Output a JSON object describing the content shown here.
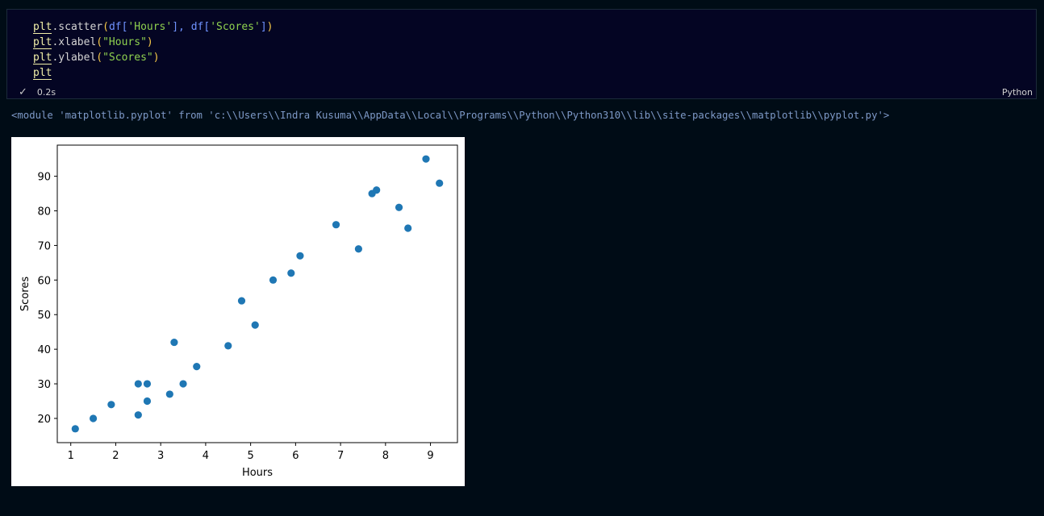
{
  "cell": {
    "code_lines": [
      [
        {
          "text": "plt",
          "cls": "v"
        },
        {
          "text": ".scatter",
          "cls": "w"
        },
        {
          "text": "(",
          "cls": "p"
        },
        {
          "text": "df",
          "cls": "k"
        },
        {
          "text": "[",
          "cls": "k"
        },
        {
          "text": "'Hours'",
          "cls": "s"
        },
        {
          "text": "], ",
          "cls": "k"
        },
        {
          "text": "df",
          "cls": "k"
        },
        {
          "text": "[",
          "cls": "k"
        },
        {
          "text": "'Scores'",
          "cls": "s"
        },
        {
          "text": "]",
          "cls": "k"
        },
        {
          "text": ")",
          "cls": "p"
        }
      ],
      [
        {
          "text": "plt",
          "cls": "v"
        },
        {
          "text": ".xlabel",
          "cls": "w"
        },
        {
          "text": "(",
          "cls": "p"
        },
        {
          "text": "\"Hours\"",
          "cls": "s"
        },
        {
          "text": ")",
          "cls": "p"
        }
      ],
      [
        {
          "text": "plt",
          "cls": "v"
        },
        {
          "text": ".ylabel",
          "cls": "w"
        },
        {
          "text": "(",
          "cls": "p"
        },
        {
          "text": "\"Scores\"",
          "cls": "s"
        },
        {
          "text": ")",
          "cls": "p"
        }
      ],
      [
        {
          "text": "plt",
          "cls": "v"
        }
      ]
    ],
    "status_icon": "check-icon",
    "exec_time": "0.2s",
    "language": "Python"
  },
  "output": {
    "text": "<module 'matplotlib.pyplot' from 'c:\\\\Users\\\\Indra Kusuma\\\\AppData\\\\Local\\\\Programs\\\\Python\\\\Python310\\\\lib\\\\site-packages\\\\matplotlib\\\\pyplot.py'>"
  },
  "chart_data": {
    "type": "scatter",
    "xlabel": "Hours",
    "ylabel": "Scores",
    "xlim": [
      0.7,
      9.6
    ],
    "ylim": [
      13,
      99
    ],
    "xticks": [
      1,
      2,
      3,
      4,
      5,
      6,
      7,
      8,
      9
    ],
    "yticks": [
      20,
      30,
      40,
      50,
      60,
      70,
      80,
      90
    ],
    "grid": false,
    "color": "#1f77b4",
    "points": [
      {
        "x": 1.1,
        "y": 17
      },
      {
        "x": 1.5,
        "y": 20
      },
      {
        "x": 1.9,
        "y": 24
      },
      {
        "x": 2.5,
        "y": 21
      },
      {
        "x": 2.5,
        "y": 30
      },
      {
        "x": 2.7,
        "y": 25
      },
      {
        "x": 2.7,
        "y": 30
      },
      {
        "x": 3.2,
        "y": 27
      },
      {
        "x": 3.3,
        "y": 42
      },
      {
        "x": 3.5,
        "y": 30
      },
      {
        "x": 3.8,
        "y": 35
      },
      {
        "x": 4.5,
        "y": 41
      },
      {
        "x": 4.8,
        "y": 54
      },
      {
        "x": 5.1,
        "y": 47
      },
      {
        "x": 5.5,
        "y": 60
      },
      {
        "x": 5.9,
        "y": 62
      },
      {
        "x": 6.1,
        "y": 67
      },
      {
        "x": 6.9,
        "y": 76
      },
      {
        "x": 7.4,
        "y": 69
      },
      {
        "x": 7.7,
        "y": 85
      },
      {
        "x": 7.8,
        "y": 86
      },
      {
        "x": 8.3,
        "y": 81
      },
      {
        "x": 8.5,
        "y": 75
      },
      {
        "x": 8.9,
        "y": 95
      },
      {
        "x": 9.2,
        "y": 88
      }
    ]
  }
}
